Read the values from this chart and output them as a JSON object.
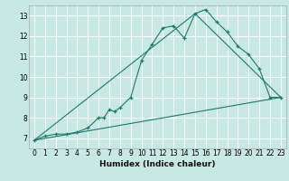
{
  "xlabel": "Humidex (Indice chaleur)",
  "xlim": [
    -0.5,
    23.5
  ],
  "ylim": [
    6.5,
    13.5
  ],
  "xticks": [
    0,
    1,
    2,
    3,
    4,
    5,
    6,
    7,
    8,
    9,
    10,
    11,
    12,
    13,
    14,
    15,
    16,
    17,
    18,
    19,
    20,
    21,
    22,
    23
  ],
  "yticks": [
    7,
    8,
    9,
    10,
    11,
    12,
    13
  ],
  "bg_color": "#c8e8e4",
  "grid_color": "#ffffff",
  "line_color": "#1a7a6e",
  "curve1_x": [
    0,
    1,
    2,
    3,
    4,
    5,
    6,
    6.5,
    7,
    7.5,
    8,
    9,
    10,
    11,
    12,
    13,
    14,
    15,
    16,
    17,
    18,
    19,
    20,
    21,
    22,
    23
  ],
  "curve1_y": [
    6.9,
    7.1,
    7.2,
    7.2,
    7.3,
    7.5,
    8.0,
    8.0,
    8.4,
    8.3,
    8.5,
    9.0,
    10.8,
    11.6,
    12.4,
    12.5,
    11.9,
    13.1,
    13.3,
    12.7,
    12.2,
    11.5,
    11.1,
    10.4,
    9.0,
    9.0
  ],
  "line1_x": [
    0,
    23
  ],
  "line1_y": [
    6.9,
    9.0
  ],
  "line2_x": [
    0,
    15,
    23
  ],
  "line2_y": [
    6.9,
    13.1,
    9.0
  ]
}
